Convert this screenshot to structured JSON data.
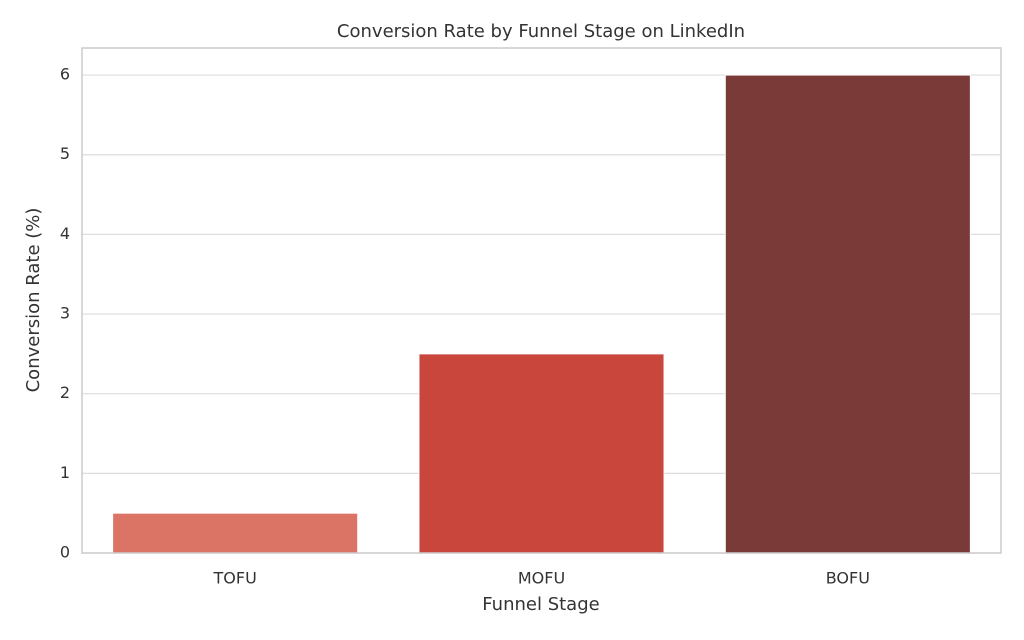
{
  "chart_data": {
    "type": "bar",
    "title": "Conversion Rate by Funnel Stage on LinkedIn",
    "xlabel": "Funnel Stage",
    "ylabel": "Conversion Rate (%)",
    "categories": [
      "TOFU",
      "MOFU",
      "BOFU"
    ],
    "values": [
      0.5,
      2.5,
      6.0
    ],
    "colors": [
      "#dc7466",
      "#c9463d",
      "#7a3a38"
    ],
    "ylim": [
      0,
      6.34
    ],
    "yticks": [
      0,
      1,
      2,
      3,
      4,
      5,
      6
    ],
    "grid": true
  }
}
